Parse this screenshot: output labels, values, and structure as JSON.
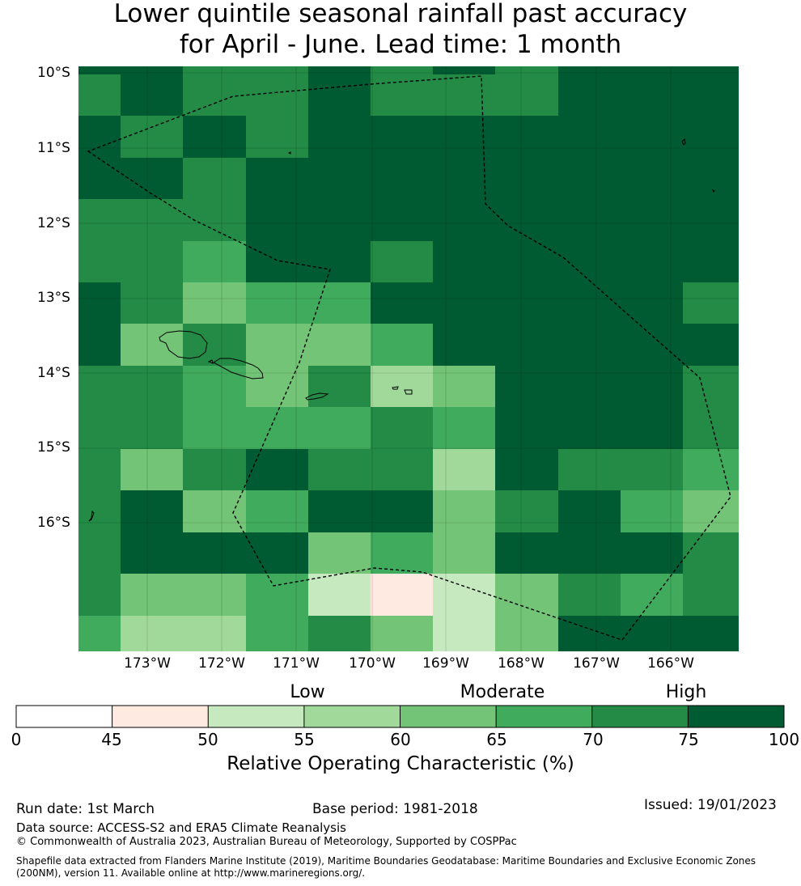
{
  "title": {
    "line1": "Lower quintile seasonal rainfall past accuracy",
    "line2": "for April - June. Lead time: 1 month"
  },
  "map": {
    "latitude_labels": [
      "10°S",
      "11°S",
      "12°S",
      "13°S",
      "14°S",
      "15°S",
      "16°S"
    ],
    "longitude_labels": [
      "173°W",
      "172°W",
      "171°W",
      "170°W",
      "169°W",
      "168°W",
      "167°W",
      "166°W"
    ],
    "grid_roc_values": [
      [
        70,
        80,
        70,
        70,
        80,
        70,
        70,
        70,
        80,
        80,
        80
      ],
      [
        80,
        70,
        80,
        70,
        80,
        80,
        80,
        80,
        80,
        80,
        80
      ],
      [
        80,
        80,
        70,
        80,
        80,
        80,
        80,
        80,
        80,
        80,
        80
      ],
      [
        70,
        70,
        70,
        80,
        80,
        80,
        80,
        80,
        80,
        80,
        80
      ],
      [
        70,
        70,
        65,
        80,
        80,
        70,
        80,
        80,
        80,
        80,
        80
      ],
      [
        80,
        70,
        62,
        65,
        65,
        80,
        80,
        80,
        80,
        80,
        70
      ],
      [
        80,
        62,
        70,
        62,
        62,
        65,
        80,
        80,
        80,
        80,
        80
      ],
      [
        70,
        70,
        65,
        62,
        70,
        57,
        62,
        80,
        80,
        80,
        70
      ],
      [
        70,
        70,
        65,
        65,
        65,
        70,
        65,
        80,
        80,
        80,
        70
      ],
      [
        70,
        62,
        70,
        80,
        70,
        70,
        57,
        80,
        70,
        70,
        65
      ],
      [
        70,
        80,
        62,
        65,
        80,
        80,
        62,
        70,
        80,
        65,
        62
      ],
      [
        70,
        80,
        80,
        80,
        62,
        65,
        62,
        80,
        80,
        80,
        70
      ],
      [
        70,
        62,
        62,
        65,
        52,
        47,
        52,
        62,
        70,
        65,
        70
      ],
      [
        65,
        57,
        57,
        65,
        70,
        62,
        52,
        62,
        80,
        80,
        80
      ]
    ]
  },
  "colorbar": {
    "ticks": [
      "0",
      "45",
      "50",
      "55",
      "60",
      "65",
      "70",
      "75",
      "100"
    ],
    "bins": [
      {
        "from": 0,
        "to": 45,
        "color": "#ffffff"
      },
      {
        "from": 45,
        "to": 50,
        "color": "#feeae1"
      },
      {
        "from": 50,
        "to": 55,
        "color": "#c7e9c0"
      },
      {
        "from": 55,
        "to": 60,
        "color": "#a1d99b"
      },
      {
        "from": 60,
        "to": 65,
        "color": "#73c476"
      },
      {
        "from": 65,
        "to": 70,
        "color": "#41ab5d"
      },
      {
        "from": 70,
        "to": 75,
        "color": "#238b45"
      },
      {
        "from": 75,
        "to": 100,
        "color": "#005a32"
      }
    ],
    "categories": [
      "Low",
      "Moderate",
      "High"
    ],
    "label": "Relative Operating Characteristic (%)"
  },
  "footer": {
    "run_date": "Run date: 1st March",
    "base_period": "Base period: 1981-2018",
    "issued": "Issued: 19/01/2023",
    "data_source": "Data source: ACCESS-S2 and ERA5 Climate Reanalysis",
    "copyright": "© Commonwealth of Australia 2023, Australian Bureau of Meteorology, Supported by COSPPac",
    "shapefile_line1": "Shapefile data extracted from Flanders Marine Institute (2019), Maritime Boundaries Geodatabase: Maritime Boundaries and Exclusive Economic Zones",
    "shapefile_line2": "(200NM), version 11. Available online at http://www.marineregions.org/."
  }
}
